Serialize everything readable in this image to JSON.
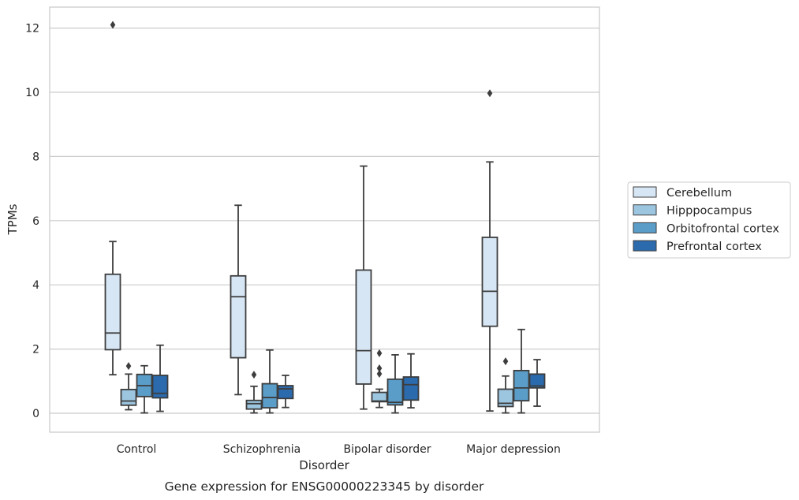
{
  "caption": "Gene expression for ENSG00000223345 by disorder",
  "chart_data": {
    "type": "boxplot",
    "title": "",
    "xlabel": "Disorder",
    "ylabel": "TPMs",
    "categories": [
      "Control",
      "Schizophrenia",
      "Bipolar disorder",
      "Major depression"
    ],
    "ylim": [
      -0.6,
      12.7
    ],
    "yticks": [
      0,
      2,
      4,
      6,
      8,
      10,
      12
    ],
    "grid": "horizontal",
    "legend_position": "right",
    "series": [
      {
        "name": "Cerebellum",
        "color": "#d7e6f4",
        "boxes": [
          {
            "whisker_low": 1.2,
            "q1": 1.98,
            "median": 2.5,
            "q3": 4.33,
            "whisker_high": 5.35,
            "outliers": [
              12.1
            ]
          },
          {
            "whisker_low": 0.58,
            "q1": 1.73,
            "median": 3.63,
            "q3": 4.28,
            "whisker_high": 6.48,
            "outliers": []
          },
          {
            "whisker_low": 0.13,
            "q1": 0.91,
            "median": 1.95,
            "q3": 4.46,
            "whisker_high": 7.7,
            "outliers": []
          },
          {
            "whisker_low": 0.07,
            "q1": 2.71,
            "median": 3.8,
            "q3": 5.48,
            "whisker_high": 7.83,
            "outliers": [
              9.97
            ]
          }
        ]
      },
      {
        "name": "Hipppocampus",
        "color": "#9cc5df",
        "boxes": [
          {
            "whisker_low": 0.11,
            "q1": 0.25,
            "median": 0.38,
            "q3": 0.74,
            "whisker_high": 1.22,
            "outliers": [
              1.47
            ]
          },
          {
            "whisker_low": 0.01,
            "q1": 0.13,
            "median": 0.3,
            "q3": 0.4,
            "whisker_high": 0.84,
            "outliers": [
              1.2
            ]
          },
          {
            "whisker_low": 0.18,
            "q1": 0.36,
            "median": 0.38,
            "q3": 0.65,
            "whisker_high": 0.75,
            "outliers": [
              1.23,
              1.4,
              1.87
            ]
          },
          {
            "whisker_low": 0.01,
            "q1": 0.21,
            "median": 0.31,
            "q3": 0.75,
            "whisker_high": 1.16,
            "outliers": [
              1.62
            ]
          }
        ]
      },
      {
        "name": "Orbitofrontal cortex",
        "color": "#5a9dc9",
        "boxes": [
          {
            "whisker_low": 0.01,
            "q1": 0.52,
            "median": 0.86,
            "q3": 1.21,
            "whisker_high": 1.48,
            "outliers": []
          },
          {
            "whisker_low": 0.01,
            "q1": 0.17,
            "median": 0.49,
            "q3": 0.92,
            "whisker_high": 1.97,
            "outliers": []
          },
          {
            "whisker_low": 0.01,
            "q1": 0.26,
            "median": 0.34,
            "q3": 1.06,
            "whisker_high": 1.82,
            "outliers": []
          },
          {
            "whisker_low": 0.01,
            "q1": 0.39,
            "median": 0.79,
            "q3": 1.33,
            "whisker_high": 2.61,
            "outliers": []
          }
        ]
      },
      {
        "name": "Prefrontal cortex",
        "color": "#2a6aad",
        "boxes": [
          {
            "whisker_low": 0.06,
            "q1": 0.48,
            "median": 0.62,
            "q3": 1.18,
            "whisker_high": 2.12,
            "outliers": []
          },
          {
            "whisker_low": 0.18,
            "q1": 0.46,
            "median": 0.76,
            "q3": 0.86,
            "whisker_high": 1.18,
            "outliers": []
          },
          {
            "whisker_low": 0.17,
            "q1": 0.41,
            "median": 0.89,
            "q3": 1.13,
            "whisker_high": 1.85,
            "outliers": []
          },
          {
            "whisker_low": 0.22,
            "q1": 0.79,
            "median": 0.85,
            "q3": 1.22,
            "whisker_high": 1.67,
            "outliers": []
          }
        ]
      }
    ]
  }
}
